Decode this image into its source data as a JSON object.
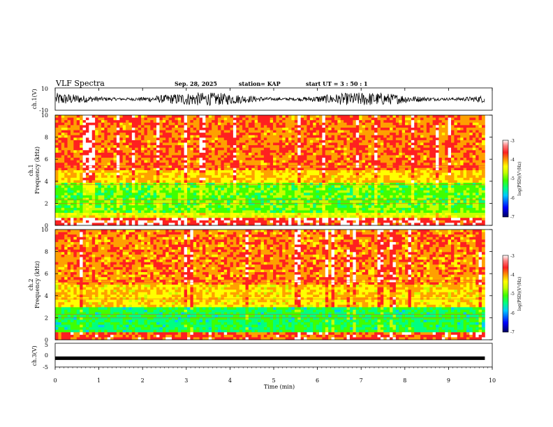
{
  "chart_data": {
    "type": "heatmap",
    "title": "VLF Spectra",
    "date": "Sep. 28, 2025",
    "station": "station= KAP",
    "start": "start  UT =   3  : 50 : 1",
    "xlabel": "Time  (min)",
    "xlim": [
      0,
      10
    ],
    "xticks": [
      "0",
      "1",
      "2",
      "3",
      "4",
      "5",
      "6",
      "7",
      "8",
      "9",
      "10"
    ],
    "data_end_min": 9.83,
    "panels": [
      {
        "id": "ch1-waveform",
        "type": "line",
        "ylabel": "ch.1(V)",
        "ylim": [
          -10,
          10
        ],
        "yticks": [
          "10",
          "-10"
        ],
        "amplitude_v": [
          -6,
          6
        ]
      },
      {
        "id": "ch1-spectrogram",
        "type": "heatmap",
        "ylabel_line1": "ch.1",
        "ylabel_line2": "Frequency  (kHz)",
        "ylim_khz": [
          0,
          10
        ],
        "yticks": [
          "0",
          "2",
          "4",
          "6",
          "8",
          "10"
        ],
        "colorbar_label": "log(PSD)(V²/Hz)",
        "colorbar_ticks": [
          "-3",
          "-4",
          "-5",
          "-6",
          "-7"
        ],
        "colorbar_range": [
          -7,
          -3
        ]
      },
      {
        "id": "ch2-spectrogram",
        "type": "heatmap",
        "ylabel_line1": "ch.2",
        "ylabel_line2": "Frequency  (kHz)",
        "ylim_khz": [
          0,
          10
        ],
        "yticks": [
          "0",
          "2",
          "4",
          "6",
          "8",
          "10"
        ],
        "colorbar_label": "log(PSD)(V²/Hz)",
        "colorbar_ticks": [
          "-3",
          "-4",
          "-5",
          "-6",
          "-7"
        ],
        "colorbar_range": [
          -7,
          -3
        ]
      },
      {
        "id": "ch3-waveform",
        "type": "line",
        "ylabel": "ch.3(V)",
        "ylim": [
          -5,
          5
        ],
        "yticks": [
          "5",
          "0",
          "-5"
        ],
        "level_v": -1.3
      }
    ],
    "colormap": [
      "#000080",
      "#0000ff",
      "#00c8ff",
      "#00ff80",
      "#40ff00",
      "#c8ff00",
      "#ffff00",
      "#ffa000",
      "#ff2020",
      "#ffffff"
    ]
  }
}
